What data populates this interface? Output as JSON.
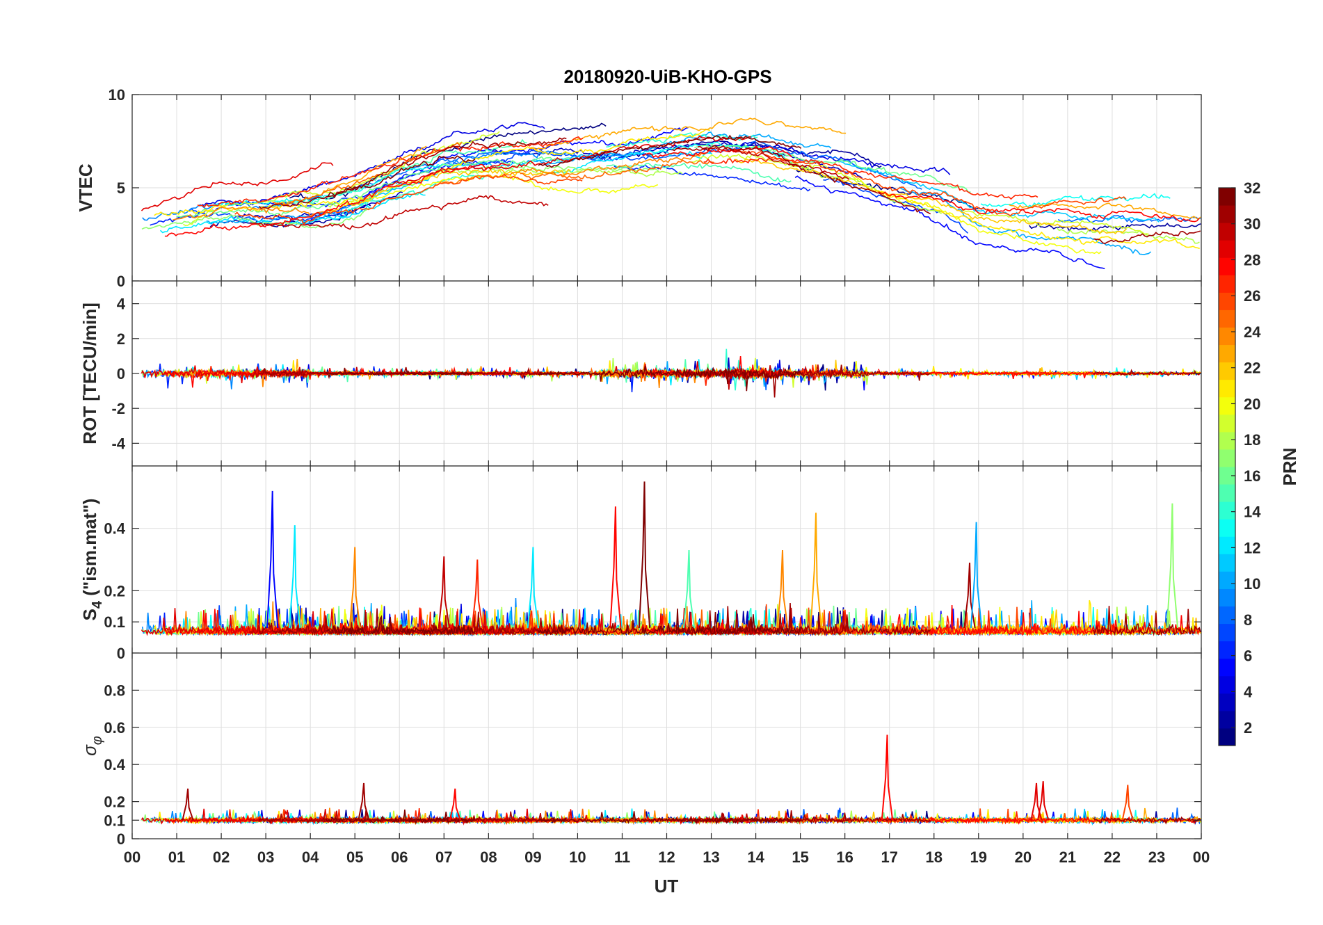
{
  "chart_data": {
    "type": "line",
    "title": "20180920-UiB-KHO-GPS",
    "xlabel": "UT",
    "x_ticks": [
      "00",
      "01",
      "02",
      "03",
      "04",
      "05",
      "06",
      "07",
      "08",
      "09",
      "10",
      "11",
      "12",
      "13",
      "14",
      "15",
      "16",
      "17",
      "18",
      "19",
      "20",
      "21",
      "22",
      "23",
      "00"
    ],
    "xlim_hours": [
      0,
      24
    ],
    "panels": [
      {
        "id": "vtec",
        "ylabel": "VTEC",
        "ylim": [
          0,
          10
        ],
        "y_ticks": [
          0,
          5,
          10
        ],
        "kind": "vtec"
      },
      {
        "id": "rot",
        "ylabel": "ROT [TECU/min]",
        "ylim": [
          -5.3,
          5.3
        ],
        "y_ticks": [
          -4,
          -2,
          0,
          2,
          4
        ],
        "kind": "rot"
      },
      {
        "id": "s4",
        "ylabel_main": "S",
        "ylabel_sub": "4",
        "ylabel_rest": " (\"ism.mat\")",
        "ylim": [
          0,
          0.6
        ],
        "y_ticks": [
          0,
          0.1,
          0.2,
          0.4
        ],
        "y_tick_labels": [
          "0",
          "0.1",
          "0.2",
          "0.4"
        ],
        "kind": "s4"
      },
      {
        "id": "sigma",
        "ylabel_main": "σ",
        "ylabel_sub": "φ",
        "ylim": [
          0,
          1.0
        ],
        "y_ticks": [
          0,
          0.1,
          0.2,
          0.4,
          0.6,
          0.8
        ],
        "y_tick_labels": [
          "0",
          "0.1",
          "0.2",
          "0.4",
          "0.6",
          "0.8"
        ],
        "kind": "sigma"
      }
    ],
    "colorbar": {
      "label": "PRN",
      "range": [
        1,
        32
      ],
      "ticks": [
        2,
        4,
        6,
        8,
        10,
        12,
        14,
        16,
        18,
        20,
        22,
        24,
        26,
        28,
        30,
        32
      ],
      "colormap": "jet"
    },
    "vtec_trend_by_hour": [
      3.0,
      3.2,
      3.6,
      3.6,
      3.8,
      4.4,
      5.3,
      6.0,
      6.3,
      6.4,
      6.5,
      6.6,
      6.8,
      7.0,
      6.9,
      6.3,
      5.8,
      5.1,
      4.6,
      3.6,
      3.3,
      3.2,
      3.0,
      2.8,
      2.7
    ],
    "s4_spikes": [
      {
        "prn": 5,
        "t": 3.15,
        "v": 0.52
      },
      {
        "prn": 12,
        "t": 3.65,
        "v": 0.41
      },
      {
        "prn": 24,
        "t": 5.0,
        "v": 0.34
      },
      {
        "prn": 30,
        "t": 7.0,
        "v": 0.31
      },
      {
        "prn": 27,
        "t": 7.75,
        "v": 0.3
      },
      {
        "prn": 12,
        "t": 9.0,
        "v": 0.34
      },
      {
        "prn": 28,
        "t": 10.85,
        "v": 0.47
      },
      {
        "prn": 32,
        "t": 11.5,
        "v": 0.55
      },
      {
        "prn": 15,
        "t": 12.5,
        "v": 0.33
      },
      {
        "prn": 23,
        "t": 15.35,
        "v": 0.45
      },
      {
        "prn": 24,
        "t": 14.6,
        "v": 0.33
      },
      {
        "prn": 31,
        "t": 18.8,
        "v": 0.29
      },
      {
        "prn": 10,
        "t": 18.95,
        "v": 0.42
      },
      {
        "prn": 17,
        "t": 23.35,
        "v": 0.48
      }
    ],
    "sigma_spikes": [
      {
        "prn": 28,
        "t": 16.95,
        "v": 0.56
      },
      {
        "prn": 29,
        "t": 20.3,
        "v": 0.3
      },
      {
        "prn": 29,
        "t": 20.45,
        "v": 0.31
      },
      {
        "prn": 31,
        "t": 5.2,
        "v": 0.3
      },
      {
        "prn": 26,
        "t": 22.35,
        "v": 0.29
      },
      {
        "prn": 31,
        "t": 1.25,
        "v": 0.27
      },
      {
        "prn": 28,
        "t": 7.25,
        "v": 0.27
      }
    ]
  }
}
